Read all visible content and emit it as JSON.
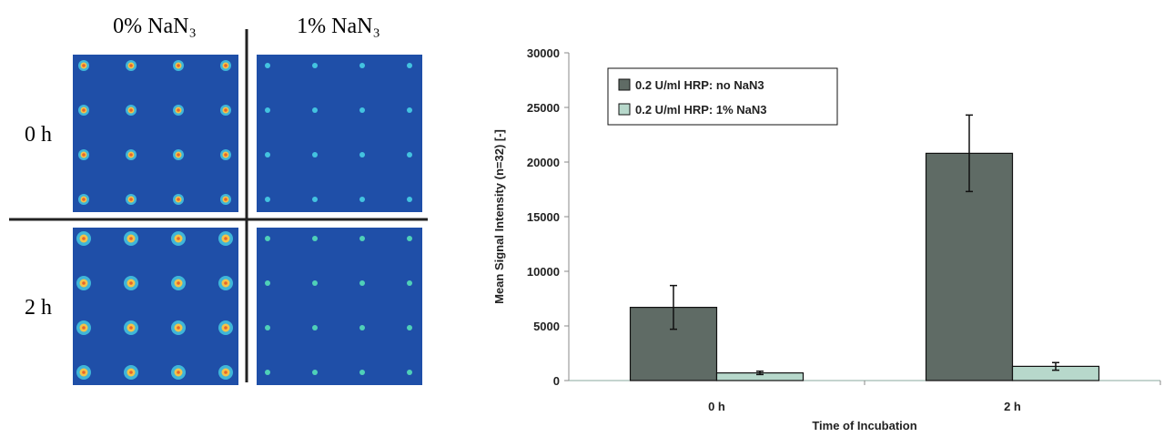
{
  "figure_panel": {
    "columns": [
      "0% NaN₃",
      "1% NaN₃"
    ],
    "rows": [
      "0 h",
      "2 h"
    ]
  },
  "chart_data": {
    "type": "bar",
    "x_label": "Time of Incubation",
    "y_label": "Mean Signal Intensity (n=32) [-]",
    "categories": [
      "0 h",
      "2 h"
    ],
    "series": [
      {
        "name": "0.2 U/ml HRP: no NaN3",
        "color": "#5f6b65",
        "values": [
          6700,
          20800
        ],
        "errors": [
          2000,
          3500
        ]
      },
      {
        "name": "0.2 U/ml HRP: 1% NaN3",
        "color": "#b7d8cb",
        "values": [
          700,
          1300
        ],
        "errors": [
          150,
          350
        ]
      }
    ],
    "ylim": [
      0,
      30000
    ],
    "yticks": [
      0,
      5000,
      10000,
      15000,
      20000,
      25000,
      30000
    ],
    "legend": "upper left"
  }
}
